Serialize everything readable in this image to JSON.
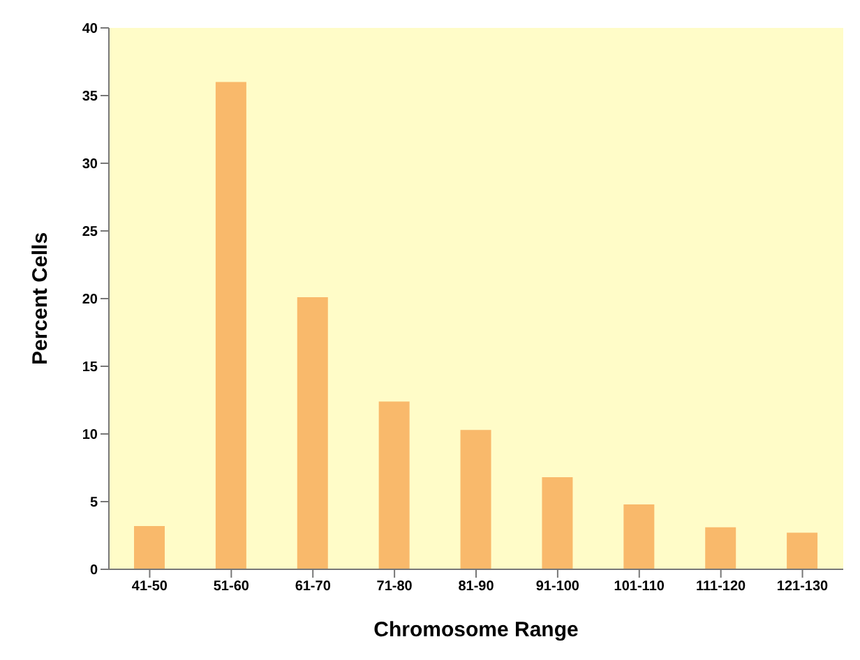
{
  "chart_data": {
    "type": "bar",
    "xlabel": "Chromosome Range",
    "ylabel": "Percent Cells",
    "categories": [
      "41-50",
      "51-60",
      "61-70",
      "71-80",
      "81-90",
      "91-100",
      "101-110",
      "111-120",
      "121-130"
    ],
    "values": [
      3.2,
      36,
      20.1,
      12.4,
      10.3,
      6.8,
      4.8,
      3.1,
      2.7
    ],
    "color": "#f9b96b",
    "ylim": [
      0,
      40
    ],
    "yticks": [
      0,
      5,
      10,
      15,
      20,
      25,
      30,
      35,
      40
    ],
    "grid": false
  }
}
